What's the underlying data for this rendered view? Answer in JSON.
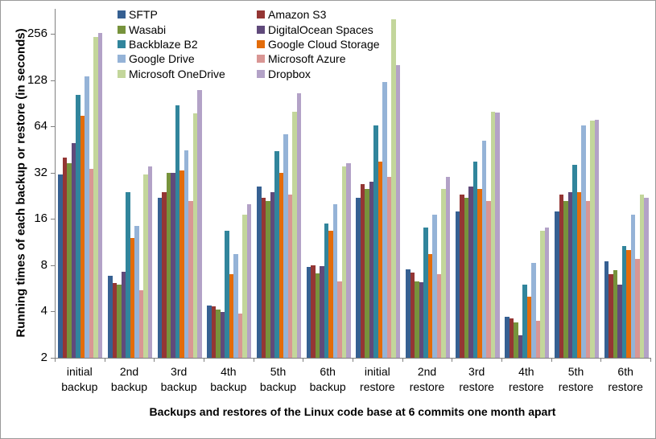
{
  "chart_data": {
    "type": "bar",
    "scale": "log2",
    "ylim": [
      2,
      256
    ],
    "yticks": [
      2,
      4,
      8,
      16,
      32,
      64,
      128,
      256
    ],
    "ylabel": "Running times of each backup or restore (in seconds)",
    "xlabel": "Backups and restores of the Linux code base at 6 commits one month apart",
    "grid": false,
    "legend_position": "top-left, two columns",
    "categories": [
      "initial backup",
      "2nd backup",
      "3rd backup",
      "4th backup",
      "5th backup",
      "6th backup",
      "initial restore",
      "2nd restore",
      "3rd restore",
      "4th restore",
      "5th restore",
      "6th restore"
    ],
    "series": [
      {
        "name": "SFTP",
        "color": "#366092",
        "values": [
          31,
          6.8,
          22,
          4.4,
          26,
          7.8,
          22,
          7.5,
          18,
          3.7,
          18,
          8.5
        ]
      },
      {
        "name": "Amazon S3",
        "color": "#943634",
        "values": [
          40,
          6.1,
          24,
          4.3,
          22,
          8.0,
          27,
          7.2,
          23,
          3.6,
          23,
          7.0
        ]
      },
      {
        "name": "Wasabi",
        "color": "#77933C",
        "values": [
          37,
          6.0,
          32,
          4.1,
          21,
          7.1,
          25,
          6.3,
          22,
          3.4,
          21,
          7.4
        ]
      },
      {
        "name": "DigitalOcean Spaces",
        "color": "#604A7B",
        "values": [
          50,
          7.3,
          32,
          4.0,
          24,
          7.9,
          28,
          6.2,
          26,
          2.8,
          24,
          6.0
        ]
      },
      {
        "name": "Backblaze B2",
        "color": "#31859C",
        "values": [
          103,
          24,
          88,
          13.5,
          44,
          15,
          65,
          14,
          38,
          6.0,
          36,
          10.7
        ]
      },
      {
        "name": "Google Cloud Storage",
        "color": "#E36C0A",
        "values": [
          75,
          12,
          33,
          7.0,
          32,
          13.5,
          38,
          9.5,
          25,
          5.0,
          24,
          10.0
        ]
      },
      {
        "name": "Google Drive",
        "color": "#95B3D7",
        "values": [
          135,
          14.5,
          45,
          9.5,
          57,
          20,
          125,
          17,
          52,
          8.3,
          65,
          17
        ]
      },
      {
        "name": "Microsoft Azure",
        "color": "#D99694",
        "values": [
          34,
          5.5,
          21,
          3.9,
          23,
          6.3,
          30,
          7.0,
          21,
          3.5,
          21,
          8.8
        ]
      },
      {
        "name": "Microsoft OneDrive",
        "color": "#C3D69B",
        "values": [
          245,
          31,
          78,
          17,
          80,
          35,
          320,
          25,
          80,
          13.5,
          70,
          23
        ]
      },
      {
        "name": "Dropbox",
        "color": "#B3A2C7",
        "values": [
          260,
          35,
          110,
          20,
          105,
          37,
          160,
          30,
          79,
          14,
          71,
          22
        ]
      }
    ],
    "legend_columns": [
      [
        "SFTP",
        "Wasabi",
        "Backblaze B2",
        "Google Drive",
        "Microsoft OneDrive"
      ],
      [
        "Amazon S3",
        "DigitalOcean Spaces",
        "Google Cloud Storage",
        "Microsoft Azure",
        "Dropbox"
      ]
    ]
  }
}
